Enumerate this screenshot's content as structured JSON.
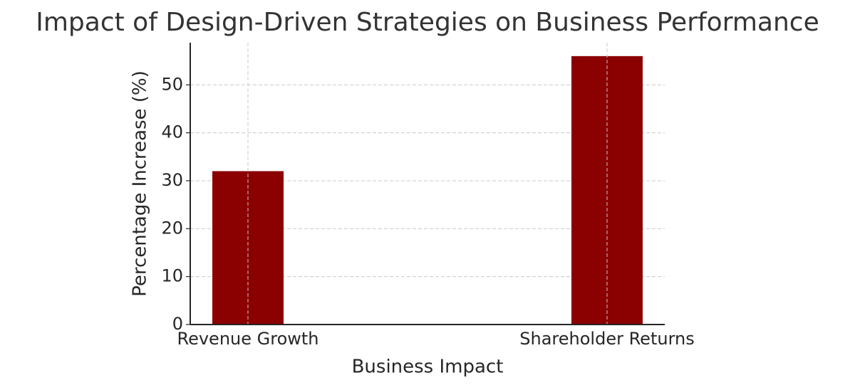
{
  "chart_data": {
    "type": "bar",
    "title": "Impact of Design-Driven Strategies on Business Performance",
    "x_label": "Business Impact",
    "y_label": "Percentage Increase (%)",
    "categories": [
      "Revenue Growth",
      "Shareholder Returns"
    ],
    "values": [
      32,
      56
    ],
    "color": "#8b0000",
    "ylim": [
      0,
      58.8
    ],
    "yticks": [
      0,
      10,
      20,
      30,
      40,
      50
    ],
    "grid": true
  }
}
